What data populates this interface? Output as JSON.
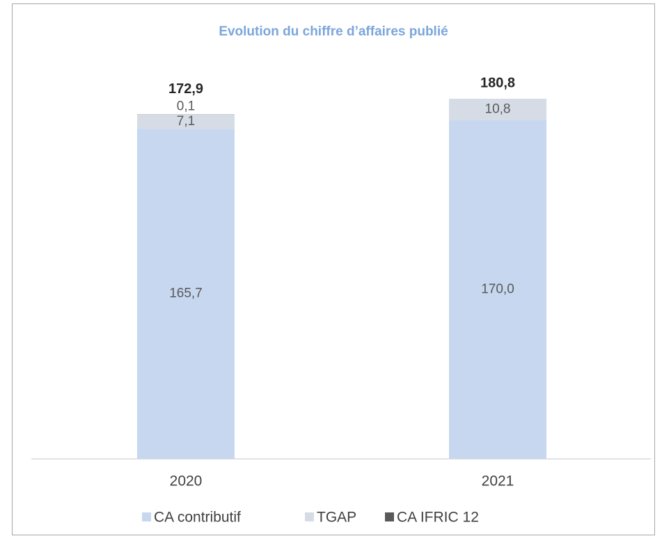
{
  "chart_data": {
    "type": "stacked_bar",
    "title": "Evolution du chiffre d’affaires publié",
    "categories": [
      "2020",
      "2021"
    ],
    "series": [
      {
        "name": "CA contributif",
        "color": "#c6d7ef",
        "values": [
          165.7,
          170.0
        ],
        "value_labels": [
          "165,7",
          "170,0"
        ]
      },
      {
        "name": "TGAP",
        "color": "#d6dce6",
        "values": [
          7.1,
          10.8
        ],
        "value_labels": [
          "7,1",
          "10,8"
        ]
      },
      {
        "name": "CA IFRIC 12",
        "color": "#595959",
        "values": [
          0.1,
          null
        ],
        "value_labels": [
          "0,1",
          null
        ]
      }
    ],
    "totals": [
      172.9,
      180.8
    ],
    "total_labels": [
      "172,9",
      "180,8"
    ],
    "ylim": [
      0,
      200
    ]
  }
}
